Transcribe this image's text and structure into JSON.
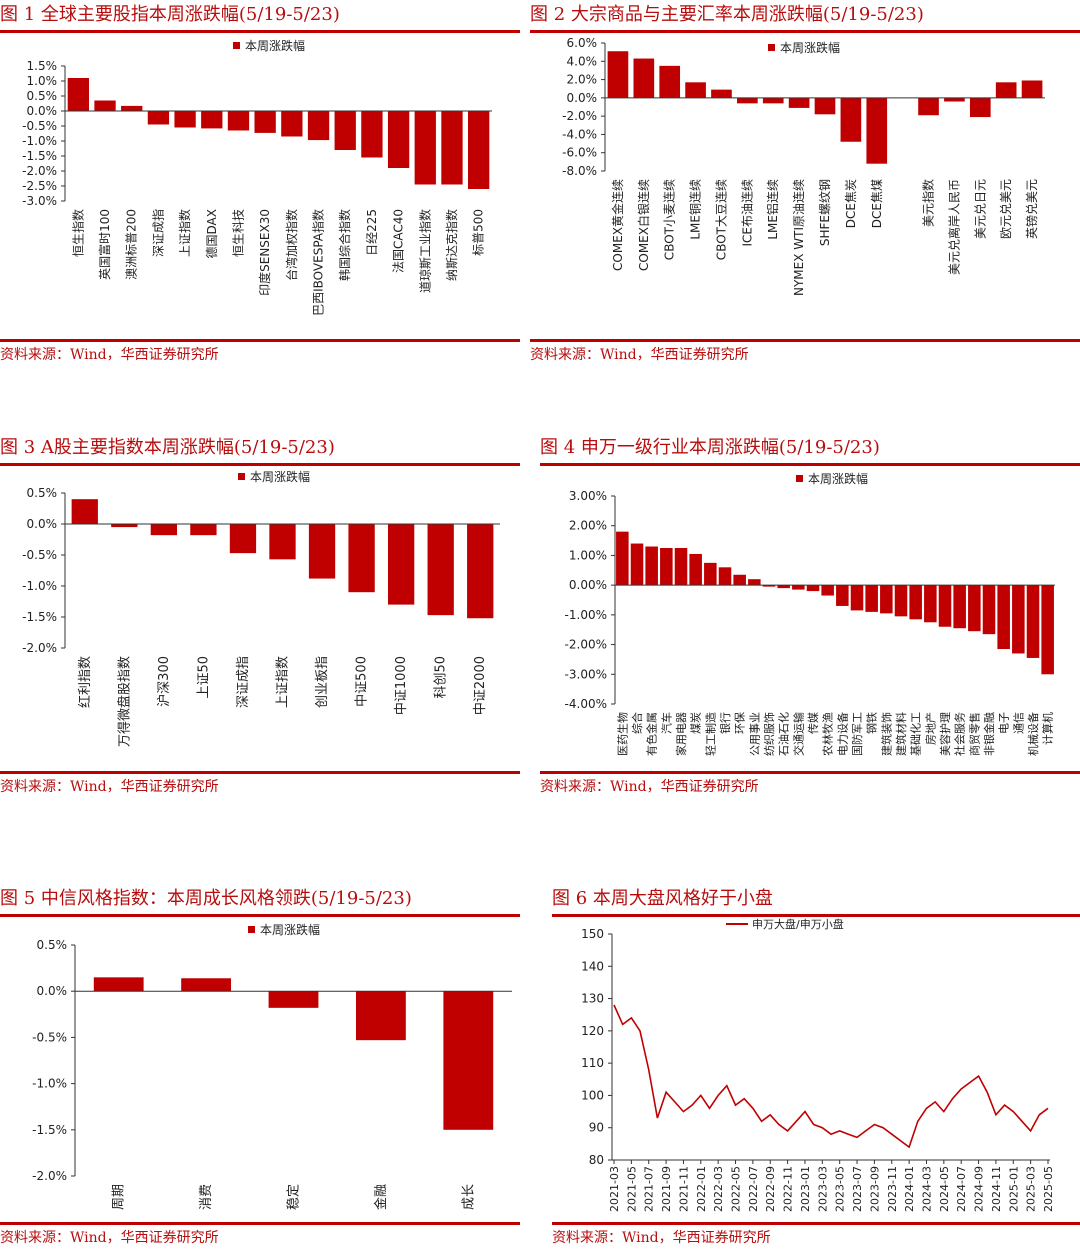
{
  "colors": {
    "bar": "#c00000",
    "title": "#b80d0d",
    "rule": "#c00000",
    "axis": "#333333"
  },
  "source_text": "资料来源：Wind，华西证券研究所",
  "chart_data": [
    {
      "type": "bar",
      "title": "图 1  全球主要股指本周涨跌幅(5/19-5/23)",
      "legend": "本周涨跌幅",
      "categories": [
        "恒生指数",
        "英国富时100",
        "澳洲标普200",
        "深证成指",
        "上证指数",
        "德国DAX",
        "恒生科技",
        "印度SENSEX30",
        "台湾加权指数",
        "巴西IBOVESPA指数",
        "韩国综合指数",
        "日经225",
        "法国CAC40",
        "道琼斯工业指数",
        "纳斯达克指数",
        "标普500"
      ],
      "values": [
        1.1,
        0.35,
        0.17,
        -0.45,
        -0.55,
        -0.58,
        -0.65,
        -0.73,
        -0.85,
        -0.97,
        -1.3,
        -1.55,
        -1.9,
        -2.45,
        -2.45,
        -2.6
      ],
      "ylim": [
        -3.0,
        1.5
      ],
      "yticks": [
        "1.5%",
        "1.0%",
        "0.5%",
        "0.0%",
        "-0.5%",
        "-1.0%",
        "-1.5%",
        "-2.0%",
        "-2.5%",
        "-3.0%"
      ]
    },
    {
      "type": "bar",
      "title": "图 2  大宗商品与主要汇率本周涨跌幅(5/19-5/23)",
      "legend": "本周涨跌幅",
      "categories": [
        "COMEX黄金连续",
        "COMEX白银连续",
        "CBOT小麦连续",
        "LME铜连续",
        "CBOT大豆连续",
        "ICE布油连续",
        "LME铝连续",
        "NYMEX WTI原油连续",
        "SHFE螺纹钢",
        "DCE焦炭",
        "DCE焦煤",
        "",
        "美元指数",
        "美元兑离岸人民币",
        "美元兑日元",
        "欧元兑美元",
        "英镑兑美元"
      ],
      "values": [
        5.1,
        4.3,
        3.5,
        1.7,
        0.9,
        -0.6,
        -0.6,
        -1.1,
        -1.8,
        -4.8,
        -7.2,
        null,
        -1.9,
        -0.4,
        -2.1,
        1.7,
        1.9
      ],
      "ylim": [
        -8.0,
        6.0
      ],
      "yticks": [
        "6.0%",
        "4.0%",
        "2.0%",
        "0.0%",
        "-2.0%",
        "-4.0%",
        "-6.0%",
        "-8.0%"
      ]
    },
    {
      "type": "bar",
      "title": "图 3  A股主要指数本周涨跌幅(5/19-5/23)",
      "legend": "本周涨跌幅",
      "categories": [
        "红利指数",
        "万得微盘股指数",
        "沪深300",
        "上证50",
        "深证成指",
        "上证指数",
        "创业板指",
        "中证500",
        "中证1000",
        "科创50",
        "中证2000"
      ],
      "values": [
        0.4,
        -0.05,
        -0.18,
        -0.18,
        -0.47,
        -0.57,
        -0.88,
        -1.1,
        -1.3,
        -1.47,
        -1.52
      ],
      "ylim": [
        -2.0,
        0.5
      ],
      "yticks": [
        "0.5%",
        "0.0%",
        "-0.5%",
        "-1.0%",
        "-1.5%",
        "-2.0%"
      ]
    },
    {
      "type": "bar",
      "title": "图 4  申万一级行业本周涨跌幅(5/19-5/23)",
      "legend": "本周涨跌幅",
      "categories": [
        "医药生物",
        "综合",
        "有色金属",
        "汽车",
        "家用电器",
        "煤炭",
        "轻工制造",
        "银行",
        "环保",
        "公用事业",
        "纺织服饰",
        "石油石化",
        "交通运输",
        "传媒",
        "农林牧渔",
        "电力设备",
        "国防军工",
        "钢铁",
        "建筑装饰",
        "建筑材料",
        "基础化工",
        "房地产",
        "美容护理",
        "社会服务",
        "商贸零售",
        "非银金融",
        "电子",
        "通信",
        "机械设备",
        "计算机"
      ],
      "values": [
        1.8,
        1.4,
        1.3,
        1.25,
        1.25,
        1.05,
        0.75,
        0.6,
        0.35,
        0.2,
        -0.05,
        -0.1,
        -0.15,
        -0.2,
        -0.35,
        -0.7,
        -0.85,
        -0.9,
        -0.95,
        -1.05,
        -1.15,
        -1.25,
        -1.4,
        -1.45,
        -1.55,
        -1.65,
        -2.15,
        -2.3,
        -2.45,
        -3.0
      ],
      "ylim": [
        -4.0,
        3.0
      ],
      "yticks": [
        "3.00%",
        "2.00%",
        "1.00%",
        "0.00%",
        "-1.00%",
        "-2.00%",
        "-3.00%",
        "-4.00%"
      ]
    },
    {
      "type": "bar",
      "title": "图 5  中信风格指数：本周成长风格领跌(5/19-5/23)",
      "legend": "本周涨跌幅",
      "categories": [
        "周期",
        "消费",
        "稳定",
        "金融",
        "成长"
      ],
      "values": [
        0.15,
        0.14,
        -0.18,
        -0.53,
        -1.5
      ],
      "ylim": [
        -2.0,
        0.5
      ],
      "yticks": [
        "0.5%",
        "0.0%",
        "-0.5%",
        "-1.0%",
        "-1.5%",
        "-2.0%"
      ]
    },
    {
      "type": "line",
      "title": "图 6  本周大盘风格好于小盘",
      "legend": "申万大盘/申万小盘",
      "ylim": [
        80,
        150
      ],
      "yticks": [
        "150",
        "140",
        "130",
        "120",
        "110",
        "100",
        "90",
        "80"
      ],
      "xticks": [
        "2021-03",
        "2021-05",
        "2021-07",
        "2021-09",
        "2021-11",
        "2022-01",
        "2022-03",
        "2022-05",
        "2022-07",
        "2022-09",
        "2022-11",
        "2023-01",
        "2023-03",
        "2023-05",
        "2023-07",
        "2023-09",
        "2023-11",
        "2024-01",
        "2024-03",
        "2024-05",
        "2024-07",
        "2024-09",
        "2024-11",
        "2025-01",
        "2025-03",
        "2025-05"
      ],
      "x": [
        "2021-03",
        "2021-04",
        "2021-05",
        "2021-06",
        "2021-07",
        "2021-08",
        "2021-09",
        "2021-10",
        "2021-11",
        "2021-12",
        "2022-01",
        "2022-02",
        "2022-03",
        "2022-04",
        "2022-05",
        "2022-06",
        "2022-07",
        "2022-08",
        "2022-09",
        "2022-10",
        "2022-11",
        "2022-12",
        "2023-01",
        "2023-02",
        "2023-03",
        "2023-04",
        "2023-05",
        "2023-06",
        "2023-07",
        "2023-08",
        "2023-09",
        "2023-10",
        "2023-11",
        "2023-12",
        "2024-01",
        "2024-02",
        "2024-03",
        "2024-04",
        "2024-05",
        "2024-06",
        "2024-07",
        "2024-08",
        "2024-09",
        "2024-10",
        "2024-11",
        "2024-12",
        "2025-01",
        "2025-02",
        "2025-03",
        "2025-04",
        "2025-05"
      ],
      "values": [
        128,
        122,
        124,
        120,
        108,
        93,
        101,
        98,
        95,
        97,
        100,
        96,
        100,
        103,
        97,
        99,
        96,
        92,
        94,
        91,
        89,
        92,
        95,
        91,
        90,
        88,
        89,
        88,
        87,
        89,
        91,
        90,
        88,
        86,
        84,
        92,
        96,
        98,
        95,
        99,
        102,
        104,
        106,
        101,
        94,
        97,
        95,
        92,
        89,
        94,
        96
      ]
    }
  ]
}
